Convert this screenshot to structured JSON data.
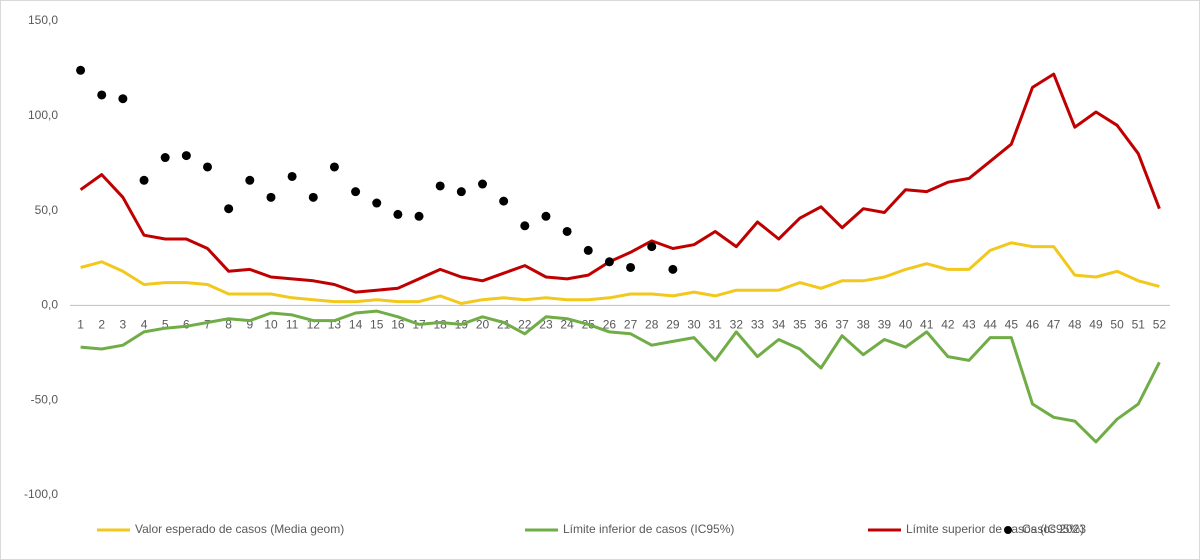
{
  "chart_data": {
    "type": "line",
    "categories": [
      "1",
      "2",
      "3",
      "4",
      "5",
      "6",
      "7",
      "8",
      "9",
      "10",
      "11",
      "12",
      "13",
      "14",
      "15",
      "16",
      "17",
      "18",
      "19",
      "20",
      "21",
      "22",
      "23",
      "24",
      "25",
      "26",
      "27",
      "28",
      "29",
      "30",
      "31",
      "32",
      "33",
      "34",
      "35",
      "36",
      "37",
      "38",
      "39",
      "40",
      "41",
      "42",
      "43",
      "44",
      "45",
      "46",
      "47",
      "48",
      "49",
      "50",
      "51",
      "52"
    ],
    "series": [
      {
        "name": "Valor esperado de casos (Media geom)",
        "color": "#f2c81d",
        "kind": "line",
        "values": [
          20,
          23,
          18,
          11,
          12,
          12,
          11,
          6,
          6,
          6,
          4,
          3,
          2,
          2,
          3,
          2,
          2,
          5,
          1,
          3,
          4,
          3,
          4,
          3,
          3,
          4,
          6,
          6,
          5,
          7,
          5,
          8,
          8,
          8,
          12,
          9,
          13,
          13,
          15,
          19,
          22,
          19,
          19,
          29,
          33,
          31,
          31,
          16,
          15,
          18,
          13,
          10
        ]
      },
      {
        "name": "Límite inferior de casos (IC95%)",
        "color": "#70ad47",
        "kind": "line",
        "values": [
          -22,
          -23,
          -21,
          -14,
          -12,
          -11,
          -9,
          -7,
          -8,
          -4,
          -5,
          -8,
          -8,
          -4,
          -3,
          -6,
          -10,
          -9,
          -10,
          -6,
          -9,
          -15,
          -6,
          -7,
          -10,
          -14,
          -15,
          -21,
          -19,
          -17,
          -29,
          -14,
          -27,
          -18,
          -23,
          -33,
          -16,
          -26,
          -18,
          -22,
          -14,
          -27,
          -29,
          -17,
          -17,
          -52,
          -59,
          -61,
          -72,
          -60,
          -52,
          -30
        ]
      },
      {
        "name": "Límite superior de casos (IC95%)",
        "color": "#c00000",
        "kind": "line",
        "values": [
          61,
          69,
          57,
          37,
          35,
          35,
          30,
          18,
          19,
          15,
          14,
          13,
          11,
          7,
          8,
          9,
          14,
          19,
          15,
          13,
          17,
          21,
          15,
          14,
          16,
          23,
          28,
          34,
          30,
          32,
          39,
          31,
          44,
          35,
          46,
          52,
          41,
          51,
          49,
          61,
          60,
          65,
          67,
          76,
          85,
          115,
          122,
          94,
          102,
          95,
          80,
          51
        ]
      },
      {
        "name": "Casos 2023",
        "color": "#000000",
        "kind": "dot",
        "values": [
          124,
          111,
          109,
          66,
          78,
          79,
          73,
          51,
          66,
          57,
          68,
          57,
          73,
          60,
          54,
          48,
          47,
          63,
          60,
          64,
          55,
          42,
          47,
          39,
          29,
          23,
          20,
          31,
          19,
          null,
          null,
          null,
          null,
          null,
          null,
          null,
          null,
          null,
          null,
          null,
          null,
          null,
          null,
          null,
          null,
          null,
          null,
          null,
          null,
          null,
          null,
          null
        ]
      }
    ],
    "ylim": [
      -100,
      150
    ],
    "yticks": [
      {
        "value": -100,
        "label": "-100,0"
      },
      {
        "value": -50,
        "label": "-50,0"
      },
      {
        "value": 0,
        "label": "0,0"
      },
      {
        "value": 50,
        "label": "50,0"
      },
      {
        "value": 100,
        "label": "100,0"
      },
      {
        "value": 150,
        "label": "150,0"
      }
    ],
    "grid": false,
    "legend": "bottom"
  }
}
